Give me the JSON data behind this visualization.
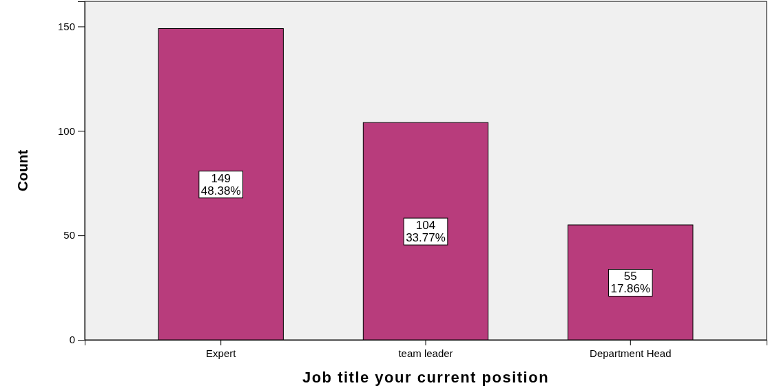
{
  "chart_data": {
    "type": "bar",
    "xlabel": "Job title your current position",
    "ylabel": "Count",
    "categories": [
      "Expert",
      "team leader",
      "Department Head"
    ],
    "values": [
      149,
      104,
      55
    ],
    "value_labels": [
      "149\n48.38%",
      "104\n33.77%",
      "55\n17.86%"
    ],
    "color": "#b83c7c",
    "ylim": [
      0,
      162
    ],
    "yticks": [
      0,
      50,
      100,
      150
    ],
    "grid": false
  }
}
